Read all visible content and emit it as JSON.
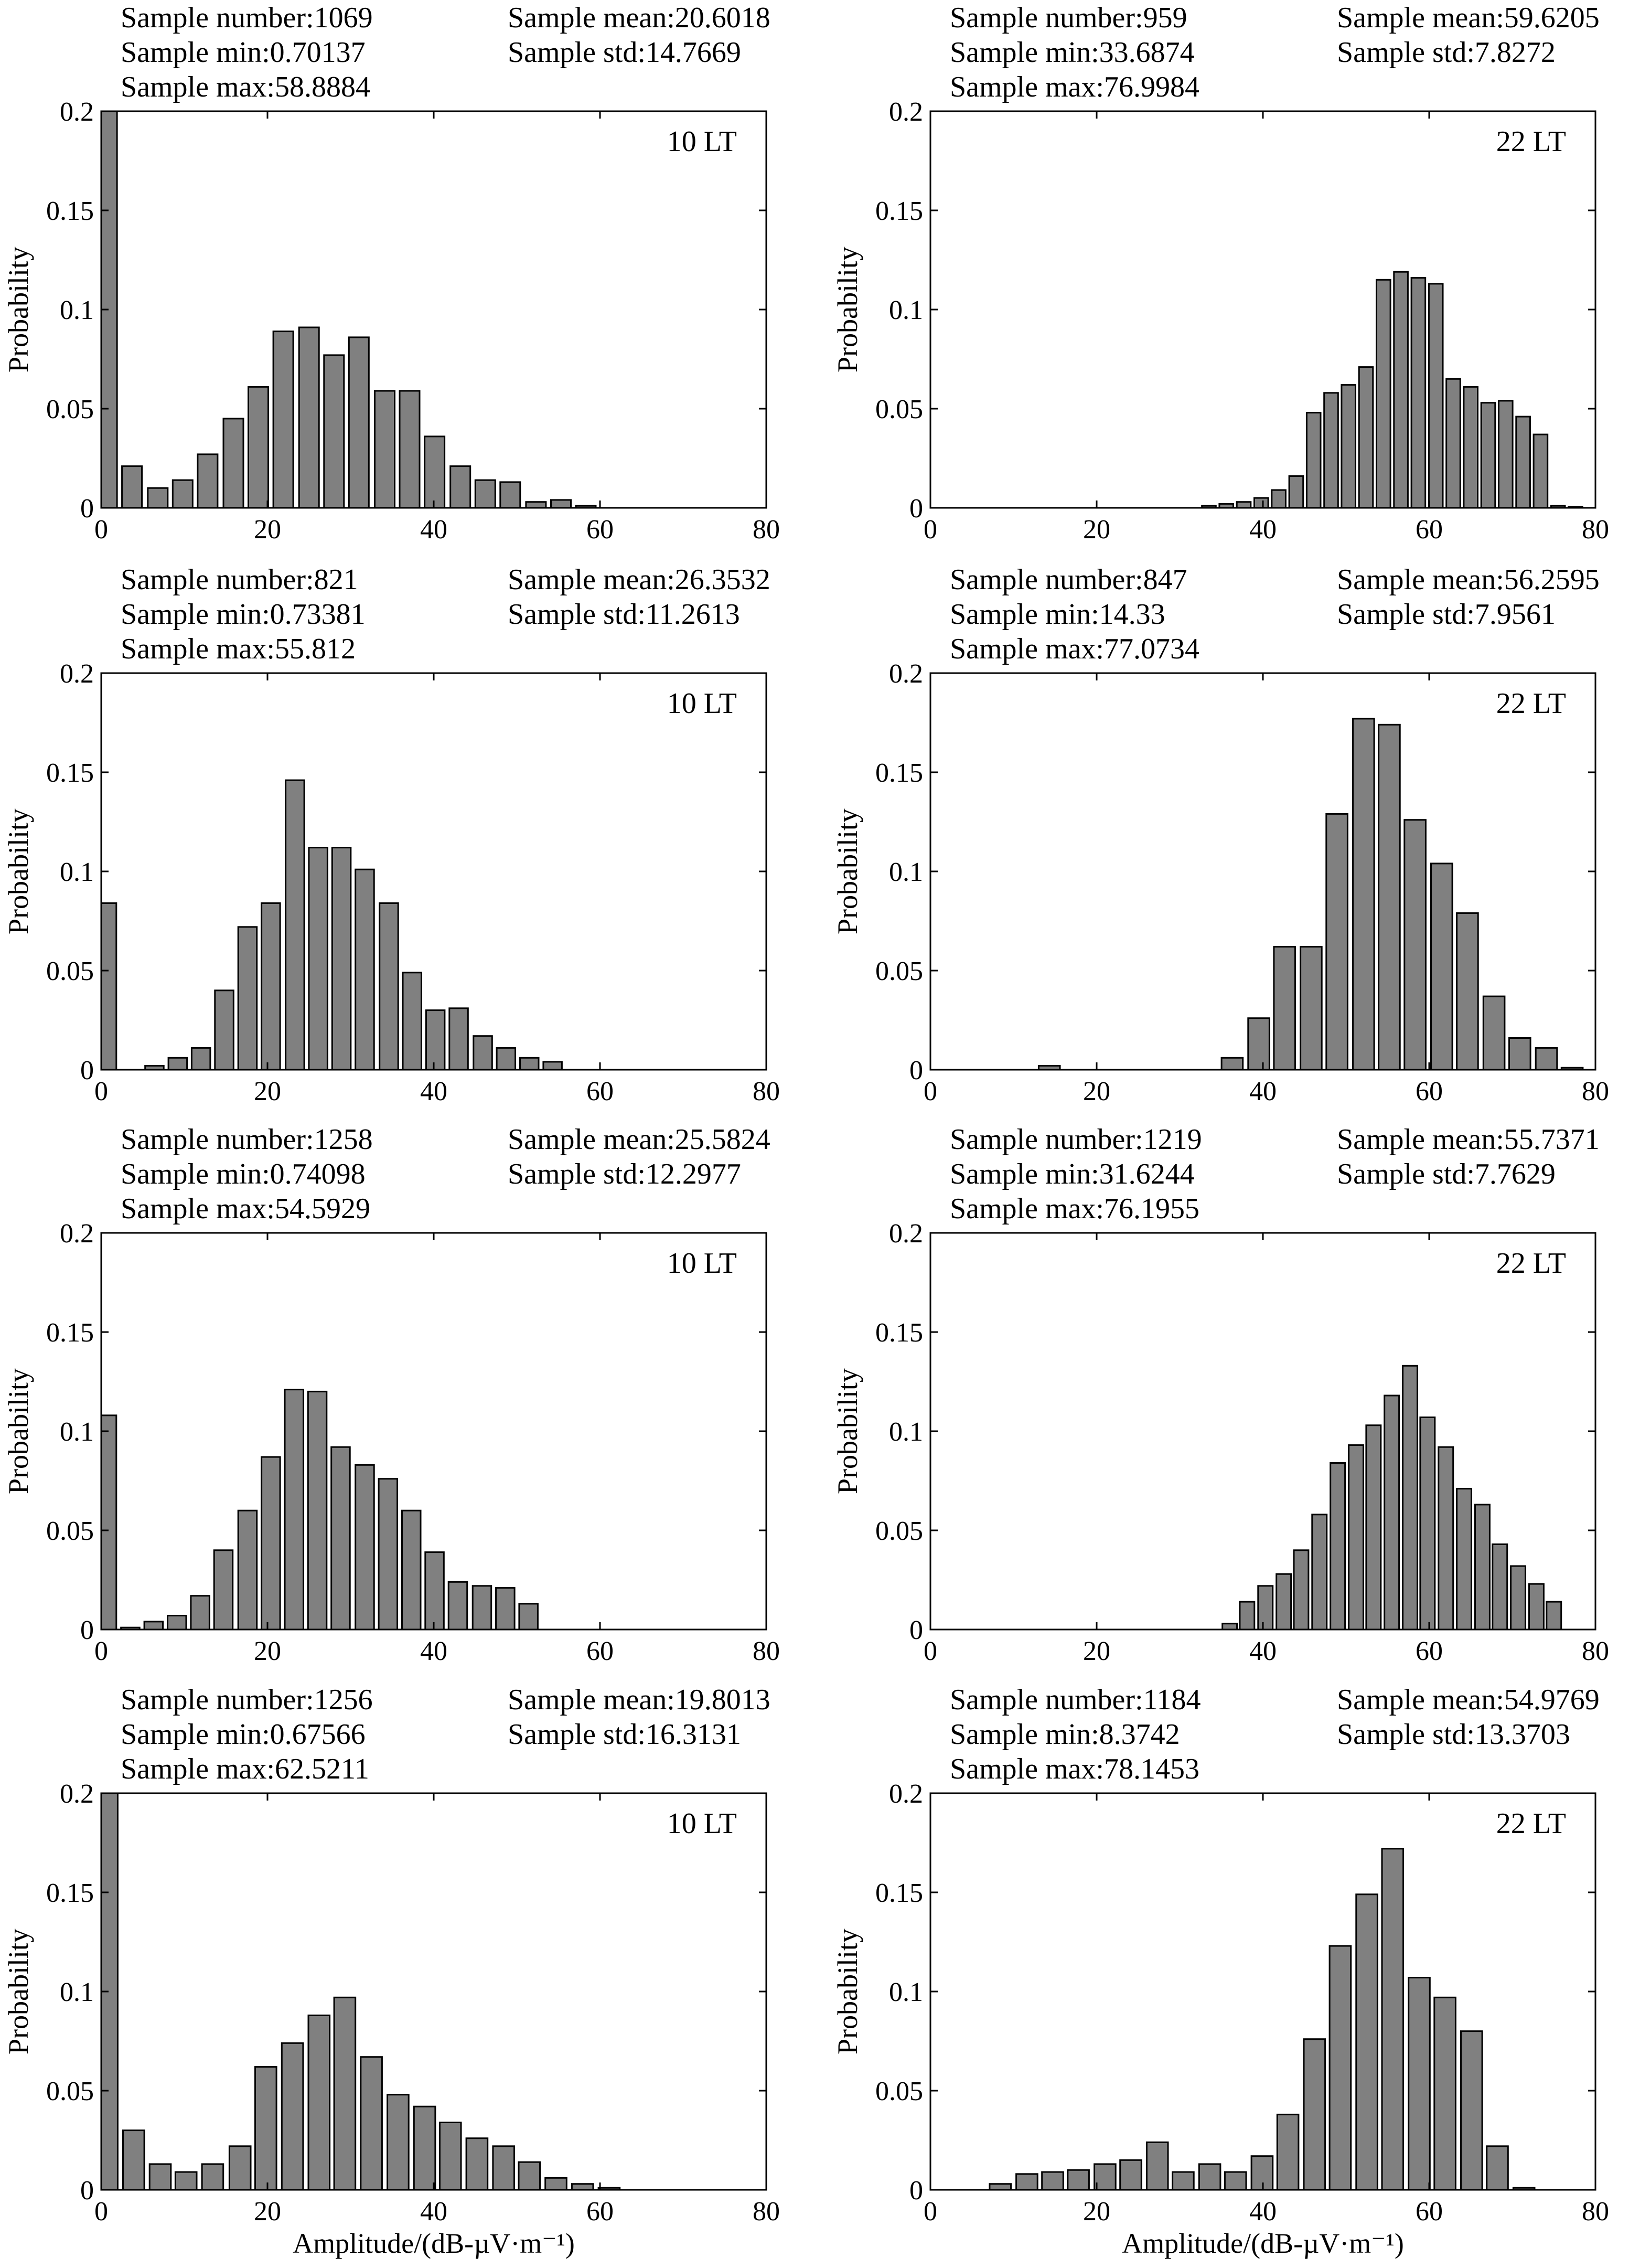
{
  "figure": {
    "ylabel": "Probability",
    "xlabel": "Amplitude/(dB-µV·m⁻¹)",
    "stat_labels": {
      "number": "Sample number:",
      "mean": "Sample mean:",
      "min": "Sample min:",
      "std": "Sample std:",
      "max": "Sample max:"
    }
  },
  "chart_data": [
    {
      "type": "bar",
      "title": "10 LT",
      "xlim": [
        0,
        80
      ],
      "ylim": [
        0,
        0.2
      ],
      "xticks": [
        "0",
        "20",
        "40",
        "60",
        "80"
      ],
      "yticks": [
        "0",
        "0.05",
        "0.1",
        "0.15",
        "0.2"
      ],
      "stats": {
        "number": "1069",
        "mean": "20.6018",
        "min": "0.70137",
        "std": "14.7669",
        "max": "58.8884"
      },
      "x": [
        0.7,
        3.7,
        6.8,
        9.8,
        12.8,
        15.9,
        18.9,
        21.9,
        25.0,
        28.0,
        31.0,
        34.1,
        37.1,
        40.1,
        43.2,
        46.2,
        49.2,
        52.3,
        55.3,
        58.3
      ],
      "values": [
        0.2,
        0.021,
        0.01,
        0.014,
        0.027,
        0.045,
        0.061,
        0.089,
        0.091,
        0.077,
        0.086,
        0.059,
        0.059,
        0.036,
        0.021,
        0.014,
        0.013,
        0.003,
        0.004,
        0.001
      ]
    },
    {
      "type": "bar",
      "title": "22 LT",
      "xlim": [
        0,
        80
      ],
      "ylim": [
        0,
        0.2
      ],
      "xticks": [
        "0",
        "20",
        "40",
        "60",
        "80"
      ],
      "yticks": [
        "0",
        "0.05",
        "0.1",
        "0.15",
        "0.2"
      ],
      "stats": {
        "number": "959",
        "mean": "59.6205",
        "min": "33.6874",
        "std": "7.8272",
        "max": "76.9984"
      },
      "x": [
        33.5,
        35.6,
        37.7,
        39.8,
        41.9,
        44.0,
        46.1,
        48.2,
        50.3,
        52.4,
        54.5,
        56.6,
        58.7,
        60.8,
        62.9,
        65.0,
        67.1,
        69.2,
        71.3,
        73.4,
        75.5,
        77.6
      ],
      "values": [
        0.001,
        0.002,
        0.003,
        0.005,
        0.009,
        0.016,
        0.048,
        0.058,
        0.062,
        0.071,
        0.115,
        0.119,
        0.116,
        0.113,
        0.065,
        0.061,
        0.053,
        0.054,
        0.046,
        0.037,
        0.001,
        0.0005
      ]
    },
    {
      "type": "bar",
      "title": "10 LT",
      "xlim": [
        0,
        80
      ],
      "ylim": [
        0,
        0.2
      ],
      "xticks": [
        "0",
        "20",
        "40",
        "60",
        "80"
      ],
      "yticks": [
        "0",
        "0.05",
        "0.1",
        "0.15",
        "0.2"
      ],
      "stats": {
        "number": "821",
        "mean": "26.3532",
        "min": "0.73381",
        "std": "11.2613",
        "max": "55.812"
      },
      "x": [
        0.7,
        3.5,
        6.4,
        9.2,
        12.0,
        14.8,
        17.6,
        20.4,
        23.3,
        26.1,
        28.9,
        31.7,
        34.6,
        37.4,
        40.2,
        43.0,
        45.9,
        48.7,
        51.5,
        54.3
      ],
      "values": [
        0.084,
        0.0,
        0.002,
        0.006,
        0.011,
        0.04,
        0.072,
        0.084,
        0.146,
        0.112,
        0.112,
        0.101,
        0.084,
        0.049,
        0.03,
        0.031,
        0.017,
        0.011,
        0.006,
        0.004
      ]
    },
    {
      "type": "bar",
      "title": "22 LT",
      "xlim": [
        0,
        80
      ],
      "ylim": [
        0,
        0.2
      ],
      "xticks": [
        "0",
        "20",
        "40",
        "60",
        "80"
      ],
      "yticks": [
        "0",
        "0.05",
        "0.1",
        "0.15",
        "0.2"
      ],
      "stats": {
        "number": "847",
        "mean": "56.2595",
        "min": "14.33",
        "std": "7.9561",
        "max": "77.0734"
      },
      "x": [
        14.3,
        17.5,
        20.6,
        23.7,
        26.9,
        30.0,
        33.2,
        36.3,
        39.5,
        42.6,
        45.8,
        48.9,
        52.1,
        55.2,
        58.3,
        61.5,
        64.6,
        67.8,
        70.9,
        74.1,
        77.2
      ],
      "values": [
        0.002,
        0.0,
        0.0,
        0.0,
        0.0,
        0.0,
        0.0,
        0.006,
        0.026,
        0.062,
        0.062,
        0.129,
        0.177,
        0.174,
        0.126,
        0.104,
        0.079,
        0.037,
        0.016,
        0.011,
        0.001
      ]
    },
    {
      "type": "bar",
      "title": "10 LT",
      "xlim": [
        0,
        80
      ],
      "ylim": [
        0,
        0.2
      ],
      "xticks": [
        "0",
        "20",
        "40",
        "60",
        "80"
      ],
      "yticks": [
        "0",
        "0.05",
        "0.1",
        "0.15",
        "0.2"
      ],
      "stats": {
        "number": "1258",
        "mean": "25.5824",
        "min": "0.74098",
        "std": "12.2977",
        "max": "54.5929"
      },
      "x": [
        0.7,
        3.5,
        6.3,
        9.1,
        11.9,
        14.7,
        17.6,
        20.4,
        23.2,
        26.0,
        28.8,
        31.7,
        34.5,
        37.3,
        40.1,
        42.9,
        45.8,
        48.6,
        51.4,
        54.2
      ],
      "values": [
        0.108,
        0.001,
        0.004,
        0.007,
        0.017,
        0.04,
        0.06,
        0.087,
        0.121,
        0.12,
        0.092,
        0.083,
        0.076,
        0.06,
        0.039,
        0.024,
        0.022,
        0.021,
        0.013,
        0.0
      ]
    },
    {
      "type": "bar",
      "title": "22 LT",
      "xlim": [
        0,
        80
      ],
      "ylim": [
        0,
        0.2
      ],
      "xticks": [
        "0",
        "20",
        "40",
        "60",
        "80"
      ],
      "yticks": [
        "0",
        "0.05",
        "0.1",
        "0.15",
        "0.2"
      ],
      "stats": {
        "number": "1219",
        "mean": "55.7371",
        "min": "31.6244",
        "std": "7.7629",
        "max": "76.1955"
      },
      "x": [
        31.6,
        33.8,
        36.0,
        38.1,
        40.3,
        42.5,
        44.6,
        46.8,
        49.0,
        51.2,
        53.3,
        55.5,
        57.7,
        59.8,
        62.0,
        64.2,
        66.4,
        68.5,
        70.7,
        72.9,
        75.0
      ],
      "values": [
        0.0,
        0.0,
        0.003,
        0.014,
        0.022,
        0.028,
        0.04,
        0.058,
        0.084,
        0.093,
        0.103,
        0.118,
        0.133,
        0.107,
        0.092,
        0.071,
        0.063,
        0.043,
        0.032,
        0.023,
        0.014
      ]
    },
    {
      "type": "bar",
      "title": "10 LT",
      "xlim": [
        0,
        80
      ],
      "ylim": [
        0,
        0.2
      ],
      "xticks": [
        "0",
        "20",
        "40",
        "60",
        "80"
      ],
      "yticks": [
        "0",
        "0.05",
        "0.1",
        "0.15",
        "0.2"
      ],
      "stats": {
        "number": "1256",
        "mean": "19.8013",
        "min": "0.67566",
        "std": "16.3131",
        "max": "62.5211"
      },
      "x": [
        0.7,
        3.9,
        7.1,
        10.2,
        13.4,
        16.7,
        19.8,
        23.0,
        26.2,
        29.3,
        32.5,
        35.7,
        38.9,
        42.0,
        45.2,
        48.4,
        51.5,
        54.7,
        57.9,
        61.1
      ],
      "values": [
        0.2,
        0.03,
        0.013,
        0.009,
        0.013,
        0.022,
        0.062,
        0.074,
        0.088,
        0.097,
        0.067,
        0.048,
        0.042,
        0.034,
        0.026,
        0.022,
        0.014,
        0.006,
        0.003,
        0.001
      ]
    },
    {
      "type": "bar",
      "title": "22 LT",
      "xlim": [
        0,
        80
      ],
      "ylim": [
        0,
        0.2
      ],
      "xticks": [
        "0",
        "20",
        "40",
        "60",
        "80"
      ],
      "yticks": [
        "0",
        "0.05",
        "0.1",
        "0.15",
        "0.2"
      ],
      "stats": {
        "number": "1184",
        "mean": "54.9769",
        "min": "8.3742",
        "std": "13.3703",
        "max": "78.1453"
      },
      "x": [
        8.4,
        11.6,
        14.7,
        17.8,
        21.0,
        24.1,
        27.3,
        30.4,
        33.6,
        36.7,
        39.9,
        43.0,
        46.2,
        49.3,
        52.5,
        55.6,
        58.8,
        61.9,
        65.1,
        68.2,
        71.4,
        74.5,
        77.6
      ],
      "values": [
        0.003,
        0.008,
        0.009,
        0.01,
        0.013,
        0.015,
        0.024,
        0.009,
        0.013,
        0.009,
        0.017,
        0.038,
        0.076,
        0.123,
        0.149,
        0.172,
        0.107,
        0.097,
        0.08,
        0.022,
        0.001,
        0.0,
        0.0
      ]
    }
  ]
}
